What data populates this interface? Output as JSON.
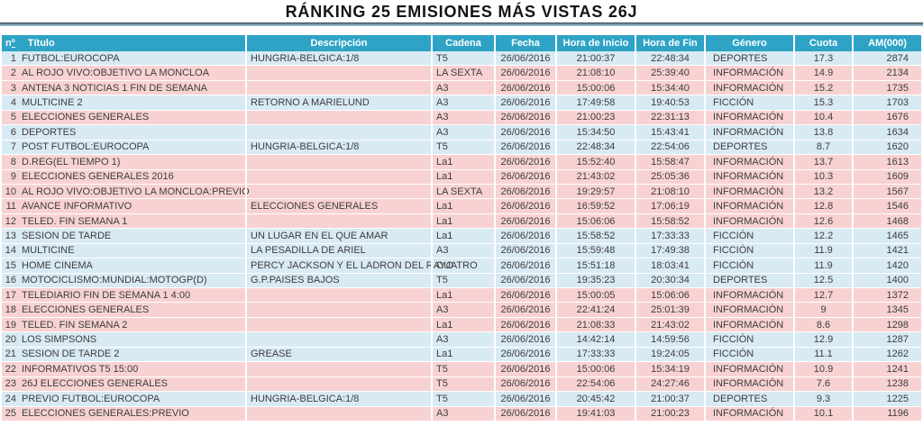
{
  "title": "RÁNKING 25 EMISIONES MÁS VISTAS 26J",
  "table": {
    "header": {
      "num_letter": "n",
      "num_ordinal": "º",
      "titulo": "Título",
      "descripcion": "Descripción",
      "cadena": "Cadena",
      "fecha": "Fecha",
      "hora_inicio": "Hora de Inicio",
      "hora_fin": "Hora de Fin",
      "genero": "Género",
      "cuota": "Cuota",
      "am": "AM(000)"
    },
    "colors": {
      "header_bg": "#2EA3C6",
      "header_text": "#FFFFFF",
      "row_blue": "#D8EAF4",
      "row_pink": "#F8D2D2",
      "title_rule_dark": "#3C4246",
      "title_rule_blue": "#6D97A9"
    },
    "rows": [
      {
        "n": "1",
        "titulo": "FUTBOL:EUROCOPA",
        "descripcion": "HUNGRIA-BELGICA:1/8",
        "cadena": "T5",
        "fecha": "26/06/2016",
        "hora_inicio": "21:00:37",
        "hora_fin": "22:48:34",
        "genero": "DEPORTES",
        "cuota": "17.3",
        "am": "2874",
        "color": "blue"
      },
      {
        "n": "2",
        "titulo": "AL ROJO VIVO:OBJETIVO LA MONCLOA",
        "descripcion": "",
        "cadena": "LA SEXTA",
        "fecha": "26/06/2016",
        "hora_inicio": "21:08:10",
        "hora_fin": "25:39:40",
        "genero": "INFORMACIÓN",
        "cuota": "14.9",
        "am": "2134",
        "color": "pink"
      },
      {
        "n": "3",
        "titulo": "ANTENA 3 NOTICIAS 1 FIN DE SEMANA",
        "descripcion": "",
        "cadena": "A3",
        "fecha": "26/06/2016",
        "hora_inicio": "15:00:06",
        "hora_fin": "15:34:40",
        "genero": "INFORMACIÓN",
        "cuota": "15.2",
        "am": "1735",
        "color": "pink"
      },
      {
        "n": "4",
        "titulo": "MULTICINE 2",
        "descripcion": "RETORNO A MARIELUND",
        "cadena": "A3",
        "fecha": "26/06/2016",
        "hora_inicio": "17:49:58",
        "hora_fin": "19:40:53",
        "genero": "FICCIÓN",
        "cuota": "15.3",
        "am": "1703",
        "color": "blue"
      },
      {
        "n": "5",
        "titulo": "ELECCIONES GENERALES",
        "descripcion": "",
        "cadena": "A3",
        "fecha": "26/06/2016",
        "hora_inicio": "21:00:23",
        "hora_fin": "22:31:13",
        "genero": "INFORMACIÓN",
        "cuota": "10.4",
        "am": "1676",
        "color": "pink"
      },
      {
        "n": "6",
        "titulo": "DEPORTES",
        "descripcion": "",
        "cadena": "A3",
        "fecha": "26/06/2016",
        "hora_inicio": "15:34:50",
        "hora_fin": "15:43:41",
        "genero": "INFORMACIÓN",
        "cuota": "13.8",
        "am": "1634",
        "color": "blue"
      },
      {
        "n": "7",
        "titulo": "POST FUTBOL:EUROCOPA",
        "descripcion": "HUNGRIA-BELGICA:1/8",
        "cadena": "T5",
        "fecha": "26/06/2016",
        "hora_inicio": "22:48:34",
        "hora_fin": "22:54:06",
        "genero": "DEPORTES",
        "cuota": "8.7",
        "am": "1620",
        "color": "blue"
      },
      {
        "n": "8",
        "titulo": "D.REG(EL TIEMPO 1)",
        "descripcion": "",
        "cadena": "La1",
        "fecha": "26/06/2016",
        "hora_inicio": "15:52:40",
        "hora_fin": "15:58:47",
        "genero": "INFORMACIÓN",
        "cuota": "13.7",
        "am": "1613",
        "color": "pink"
      },
      {
        "n": "9",
        "titulo": "ELECCIONES GENERALES 2016",
        "descripcion": "",
        "cadena": "La1",
        "fecha": "26/06/2016",
        "hora_inicio": "21:43:02",
        "hora_fin": "25:05:36",
        "genero": "INFORMACIÓN",
        "cuota": "10.3",
        "am": "1609",
        "color": "pink"
      },
      {
        "n": "10",
        "titulo": "AL ROJO VIVO:OBJETIVO LA MONCLOA:PREVIO",
        "descripcion": "",
        "cadena": "LA SEXTA",
        "fecha": "26/06/2016",
        "hora_inicio": "19:29:57",
        "hora_fin": "21:08:10",
        "genero": "INFORMACIÓN",
        "cuota": "13.2",
        "am": "1567",
        "color": "pink"
      },
      {
        "n": "11",
        "titulo": "AVANCE INFORMATIVO",
        "descripcion": "ELECCIONES GENERALES",
        "cadena": "La1",
        "fecha": "26/06/2016",
        "hora_inicio": "16:59:52",
        "hora_fin": "17:06:19",
        "genero": "INFORMACIÓN",
        "cuota": "12.8",
        "am": "1546",
        "color": "pink"
      },
      {
        "n": "12",
        "titulo": "TELED. FIN SEMANA 1",
        "descripcion": "",
        "cadena": "La1",
        "fecha": "26/06/2016",
        "hora_inicio": "15:06:06",
        "hora_fin": "15:58:52",
        "genero": "INFORMACIÓN",
        "cuota": "12.6",
        "am": "1468",
        "color": "pink"
      },
      {
        "n": "13",
        "titulo": "SESION DE TARDE",
        "descripcion": "UN LUGAR EN EL QUE AMAR",
        "cadena": "La1",
        "fecha": "26/06/2016",
        "hora_inicio": "15:58:52",
        "hora_fin": "17:33:33",
        "genero": "FICCIÓN",
        "cuota": "12.2",
        "am": "1465",
        "color": "blue"
      },
      {
        "n": "14",
        "titulo": "MULTICINE",
        "descripcion": "LA PESADILLA DE ARIEL",
        "cadena": "A3",
        "fecha": "26/06/2016",
        "hora_inicio": "15:59:48",
        "hora_fin": "17:49:38",
        "genero": "FICCIÓN",
        "cuota": "11.9",
        "am": "1421",
        "color": "blue"
      },
      {
        "n": "15",
        "titulo": "HOME CINEMA",
        "descripcion": "PERCY JACKSON Y EL LADRON DEL RAYO",
        "cadena": "CUATRO",
        "fecha": "26/06/2016",
        "hora_inicio": "15:51:18",
        "hora_fin": "18:03:41",
        "genero": "FICCIÓN",
        "cuota": "11.9",
        "am": "1420",
        "color": "blue"
      },
      {
        "n": "16",
        "titulo": "MOTOCICLISMO:MUNDIAL:MOTOGP(D)",
        "descripcion": "G.P.PAISES BAJOS",
        "cadena": "T5",
        "fecha": "26/06/2016",
        "hora_inicio": "19:35:23",
        "hora_fin": "20:30:34",
        "genero": "DEPORTES",
        "cuota": "12.5",
        "am": "1400",
        "color": "blue"
      },
      {
        "n": "17",
        "titulo": "TELEDIARIO FIN DE SEMANA 1 4:00",
        "descripcion": "",
        "cadena": "La1",
        "fecha": "26/06/2016",
        "hora_inicio": "15:00:05",
        "hora_fin": "15:06:06",
        "genero": "INFORMACIÓN",
        "cuota": "12.7",
        "am": "1372",
        "color": "pink"
      },
      {
        "n": "18",
        "titulo": "ELECCIONES GENERALES",
        "descripcion": "",
        "cadena": "A3",
        "fecha": "26/06/2016",
        "hora_inicio": "22:41:24",
        "hora_fin": "25:01:39",
        "genero": "INFORMACIÓN",
        "cuota": "9",
        "am": "1345",
        "color": "pink"
      },
      {
        "n": "19",
        "titulo": "TELED. FIN SEMANA 2",
        "descripcion": "",
        "cadena": "La1",
        "fecha": "26/06/2016",
        "hora_inicio": "21:08:33",
        "hora_fin": "21:43:02",
        "genero": "INFORMACIÓN",
        "cuota": "8.6",
        "am": "1298",
        "color": "pink"
      },
      {
        "n": "20",
        "titulo": "LOS SIMPSONS",
        "descripcion": "",
        "cadena": "A3",
        "fecha": "26/06/2016",
        "hora_inicio": "14:42:14",
        "hora_fin": "14:59:56",
        "genero": "FICCIÓN",
        "cuota": "12.9",
        "am": "1287",
        "color": "blue"
      },
      {
        "n": "21",
        "titulo": "SESION DE TARDE 2",
        "descripcion": "GREASE",
        "cadena": "La1",
        "fecha": "26/06/2016",
        "hora_inicio": "17:33:33",
        "hora_fin": "19:24:05",
        "genero": "FICCIÓN",
        "cuota": "11.1",
        "am": "1262",
        "color": "blue"
      },
      {
        "n": "22",
        "titulo": "INFORMATIVOS T5 15:00",
        "descripcion": "",
        "cadena": "T5",
        "fecha": "26/06/2016",
        "hora_inicio": "15:00:06",
        "hora_fin": "15:34:19",
        "genero": "INFORMACIÓN",
        "cuota": "10.9",
        "am": "1241",
        "color": "pink"
      },
      {
        "n": "23",
        "titulo": "26J ELECCIONES GENERALES",
        "descripcion": "",
        "cadena": "T5",
        "fecha": "26/06/2016",
        "hora_inicio": "22:54:06",
        "hora_fin": "24:27:46",
        "genero": "INFORMACIÓN",
        "cuota": "7.6",
        "am": "1238",
        "color": "pink"
      },
      {
        "n": "24",
        "titulo": "PREVIO FUTBOL:EUROCOPA",
        "descripcion": "HUNGRIA-BELGICA:1/8",
        "cadena": "T5",
        "fecha": "26/06/2016",
        "hora_inicio": "20:45:42",
        "hora_fin": "21:00:37",
        "genero": "DEPORTES",
        "cuota": "9.3",
        "am": "1225",
        "color": "blue"
      },
      {
        "n": "25",
        "titulo": "ELECCIONES GENERALES:PREVIO",
        "descripcion": "",
        "cadena": "A3",
        "fecha": "26/06/2016",
        "hora_inicio": "19:41:03",
        "hora_fin": "21:00:23",
        "genero": "INFORMACIÓN",
        "cuota": "10.1",
        "am": "1196",
        "color": "pink"
      }
    ]
  }
}
